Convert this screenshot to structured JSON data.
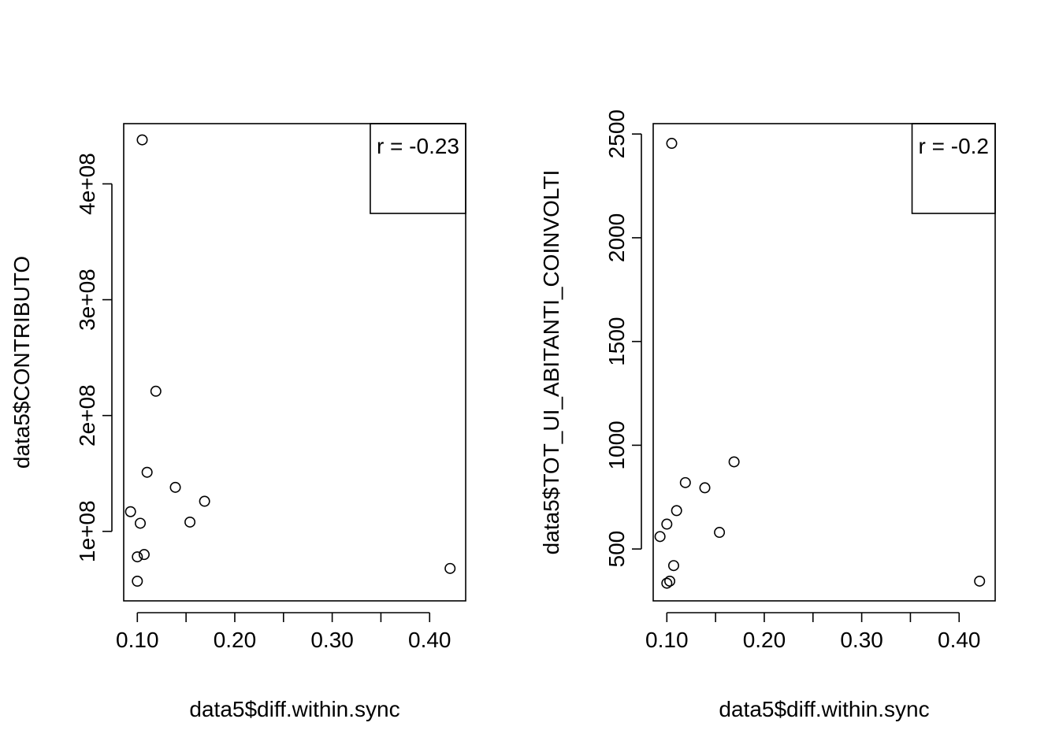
{
  "chart_data": [
    {
      "type": "scatter",
      "title": "",
      "xlabel": "data5$diff.within.sync",
      "ylabel": "data5$CONTRIBUTO",
      "xlim": [
        0.086,
        0.437
      ],
      "ylim": [
        40000000,
        452000000
      ],
      "x_ticks": [
        0.1,
        0.15,
        0.2,
        0.25,
        0.3,
        0.35,
        0.4
      ],
      "x_tick_labels": [
        "0.10",
        "",
        "0.20",
        "",
        "0.30",
        "",
        "0.40"
      ],
      "y_ticks": [
        100000000,
        200000000,
        300000000,
        400000000
      ],
      "y_tick_labels": [
        "1e+08",
        "2e+08",
        "3e+08",
        "4e+08"
      ],
      "grid": false,
      "legend": {
        "position": "top-right",
        "text": "r = -0.23"
      },
      "series": [
        {
          "marker": "open-circle",
          "points": [
            {
              "x": 0.105,
              "y": 438000000
            },
            {
              "x": 0.119,
              "y": 221000000
            },
            {
              "x": 0.11,
              "y": 151000000
            },
            {
              "x": 0.139,
              "y": 138000000
            },
            {
              "x": 0.169,
              "y": 126000000
            },
            {
              "x": 0.093,
              "y": 117000000
            },
            {
              "x": 0.103,
              "y": 107000000
            },
            {
              "x": 0.154,
              "y": 108000000
            },
            {
              "x": 0.107,
              "y": 80000000
            },
            {
              "x": 0.1,
              "y": 78000000
            },
            {
              "x": 0.1,
              "y": 57000000
            },
            {
              "x": 0.421,
              "y": 68000000
            }
          ]
        }
      ]
    },
    {
      "type": "scatter",
      "title": "",
      "xlabel": "data5$diff.within.sync",
      "ylabel": "data5$TOT_UI_ABITANTI_COINVOLTI",
      "xlim": [
        0.086,
        0.437
      ],
      "ylim": [
        250,
        2550
      ],
      "x_ticks": [
        0.1,
        0.15,
        0.2,
        0.25,
        0.3,
        0.35,
        0.4
      ],
      "x_tick_labels": [
        "0.10",
        "",
        "0.20",
        "",
        "0.30",
        "",
        "0.40"
      ],
      "y_ticks": [
        500,
        1000,
        1500,
        2000,
        2500
      ],
      "y_tick_labels": [
        "500",
        "1000",
        "1500",
        "2000",
        "2500"
      ],
      "grid": false,
      "legend": {
        "position": "top-right",
        "text": "r = -0.2"
      },
      "series": [
        {
          "marker": "open-circle",
          "points": [
            {
              "x": 0.105,
              "y": 2455
            },
            {
              "x": 0.169,
              "y": 920
            },
            {
              "x": 0.119,
              "y": 820
            },
            {
              "x": 0.139,
              "y": 795
            },
            {
              "x": 0.11,
              "y": 685
            },
            {
              "x": 0.1,
              "y": 620
            },
            {
              "x": 0.154,
              "y": 580
            },
            {
              "x": 0.093,
              "y": 560
            },
            {
              "x": 0.107,
              "y": 420
            },
            {
              "x": 0.103,
              "y": 345
            },
            {
              "x": 0.1,
              "y": 335
            },
            {
              "x": 0.421,
              "y": 345
            }
          ]
        }
      ]
    }
  ]
}
